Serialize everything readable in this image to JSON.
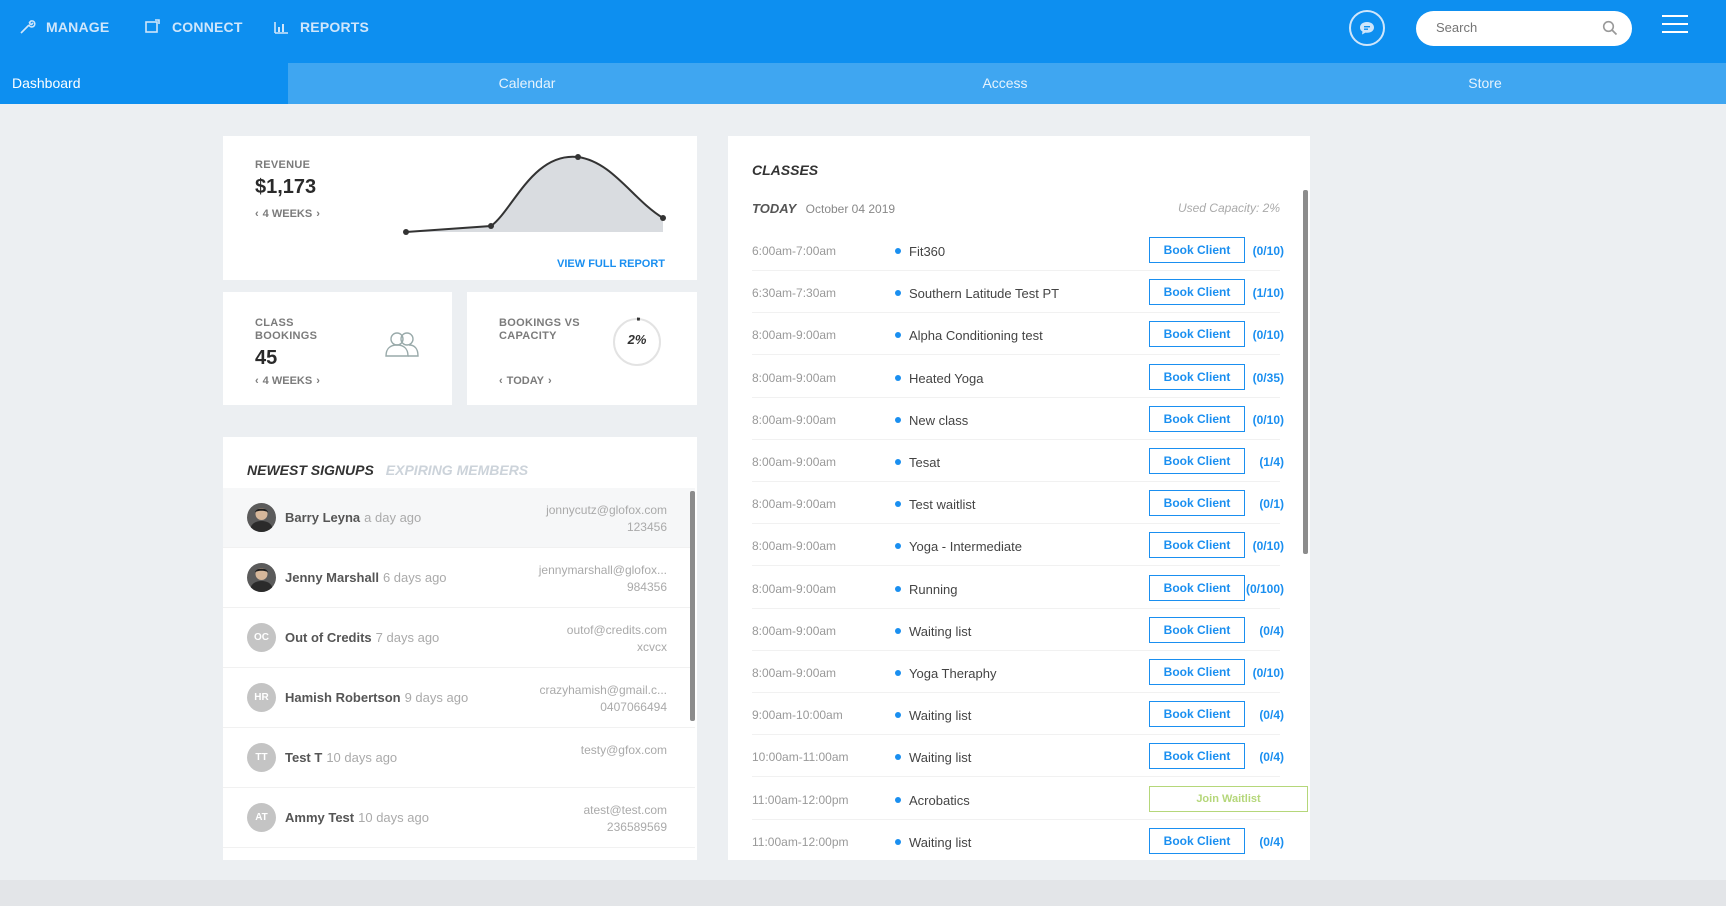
{
  "topnav": {
    "manage": "MANAGE",
    "connect": "CONNECT",
    "reports": "REPORTS",
    "search_placeholder": "Search"
  },
  "tabs": [
    "Dashboard",
    "Calendar",
    "Access",
    "Store"
  ],
  "revenue": {
    "label": "REVENUE",
    "value": "$1,173",
    "period": "4 WEEKS",
    "link": "VIEW FULL REPORT"
  },
  "class_bookings": {
    "label": "CLASS BOOKINGS",
    "value": "45",
    "period": "4 WEEKS"
  },
  "bookings_vs_capacity": {
    "label": "BOOKINGS VS CAPACITY",
    "value": "2%",
    "percent": 2,
    "period": "TODAY"
  },
  "signups": {
    "tab_active": "NEWEST SIGNUPS",
    "tab_inactive": "EXPIRING MEMBERS",
    "rows": [
      {
        "initials": "",
        "name": "Barry Leyna",
        "ago": "a day ago",
        "email": "jonnycutz@glofox.com",
        "phone": "123456"
      },
      {
        "initials": "",
        "name": "Jenny Marshall",
        "ago": "6 days ago",
        "email": "jennymarshall@glofox...",
        "phone": "984356"
      },
      {
        "initials": "OC",
        "name": "Out of Credits",
        "ago": "7 days ago",
        "email": "outof@credits.com",
        "phone": "xcvcx"
      },
      {
        "initials": "HR",
        "name": "Hamish Robertson",
        "ago": "9 days ago",
        "email": "crazyhamish@gmail.c...",
        "phone": "0407066494"
      },
      {
        "initials": "TT",
        "name": "Test T",
        "ago": "10 days ago",
        "email": "testy@gfox.com",
        "phone": ""
      },
      {
        "initials": "AT",
        "name": "Ammy Test",
        "ago": "10 days ago",
        "email": "atest@test.com",
        "phone": "236589569"
      }
    ]
  },
  "classes": {
    "title": "CLASSES",
    "today": "TODAY",
    "date": "October 04 2019",
    "used_capacity": "Used Capacity: 2%",
    "book_label": "Book Client",
    "wait_label": "Join Waitlist",
    "rows": [
      {
        "time": "6:00am-7:00am",
        "name": "Fit360",
        "capacity": "(0/10)",
        "waitlist": false
      },
      {
        "time": "6:30am-7:30am",
        "name": "Southern Latitude Test PT",
        "capacity": "(1/10)",
        "waitlist": false
      },
      {
        "time": "8:00am-9:00am",
        "name": "Alpha Conditioning test",
        "capacity": "(0/10)",
        "waitlist": false
      },
      {
        "time": "8:00am-9:00am",
        "name": "Heated Yoga",
        "capacity": "(0/35)",
        "waitlist": false
      },
      {
        "time": "8:00am-9:00am",
        "name": "New class",
        "capacity": "(0/10)",
        "waitlist": false
      },
      {
        "time": "8:00am-9:00am",
        "name": "Tesat",
        "capacity": "(1/4)",
        "waitlist": false
      },
      {
        "time": "8:00am-9:00am",
        "name": "Test waitlist",
        "capacity": "(0/1)",
        "waitlist": false
      },
      {
        "time": "8:00am-9:00am",
        "name": "Yoga - Intermediate",
        "capacity": "(0/10)",
        "waitlist": false
      },
      {
        "time": "8:00am-9:00am",
        "name": "Running",
        "capacity": "(0/100)",
        "waitlist": false
      },
      {
        "time": "8:00am-9:00am",
        "name": "Waiting list",
        "capacity": "(0/4)",
        "waitlist": false
      },
      {
        "time": "8:00am-9:00am",
        "name": "Yoga Theraphy",
        "capacity": "(0/10)",
        "waitlist": false
      },
      {
        "time": "9:00am-10:00am",
        "name": "Waiting list",
        "capacity": "(0/4)",
        "waitlist": false
      },
      {
        "time": "10:00am-11:00am",
        "name": "Waiting list",
        "capacity": "(0/4)",
        "waitlist": false
      },
      {
        "time": "11:00am-12:00pm",
        "name": "Acrobatics",
        "capacity": "",
        "waitlist": true
      },
      {
        "time": "11:00am-12:00pm",
        "name": "Waiting list",
        "capacity": "(0/4)",
        "waitlist": false
      }
    ]
  },
  "colors": {
    "brand_blue": "#0d8ff0",
    "subnav_blue": "#3fa6f1",
    "link_blue": "#1a8ff0",
    "waitlist_green": "#b5d77a"
  }
}
